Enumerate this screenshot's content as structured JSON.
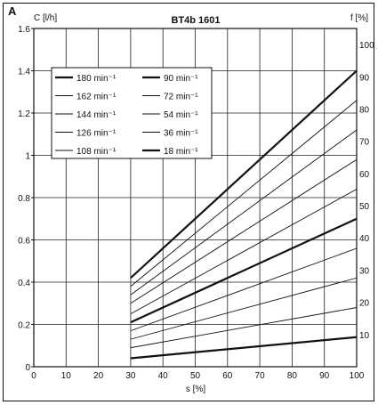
{
  "chart_data": {
    "type": "line",
    "panel_label": "A",
    "title": "BT4b 1601",
    "xlabel": "s [%]",
    "ylabel": "C [l/h]",
    "y2label": "f [%]",
    "xlim": [
      0,
      100
    ],
    "ylim": [
      0,
      1.6
    ],
    "y2lim": [
      0,
      105
    ],
    "xticks": [
      0,
      10,
      20,
      30,
      40,
      50,
      60,
      70,
      80,
      90,
      100
    ],
    "yticks": [
      0,
      0.2,
      0.4,
      0.6,
      0.8,
      1,
      1.2,
      1.4,
      1.6
    ],
    "y2ticks": [
      10,
      20,
      30,
      40,
      50,
      60,
      70,
      80,
      90,
      100
    ],
    "grid": true,
    "legend_position": "top-left",
    "x": [
      30,
      100
    ],
    "series": [
      {
        "name": "180 min⁻¹",
        "values": [
          0.42,
          1.4
        ],
        "bold": true
      },
      {
        "name": "162 min⁻¹",
        "values": [
          0.38,
          1.26
        ],
        "bold": false
      },
      {
        "name": "144 min⁻¹",
        "values": [
          0.34,
          1.12
        ],
        "bold": false
      },
      {
        "name": "126 min⁻¹",
        "values": [
          0.3,
          0.98
        ],
        "bold": false
      },
      {
        "name": "108 min⁻¹",
        "values": [
          0.25,
          0.84
        ],
        "bold": false
      },
      {
        "name": "90 min⁻¹",
        "values": [
          0.21,
          0.7
        ],
        "bold": true
      },
      {
        "name": "72 min⁻¹",
        "values": [
          0.17,
          0.56
        ],
        "bold": false
      },
      {
        "name": "54 min⁻¹",
        "values": [
          0.13,
          0.42
        ],
        "bold": false
      },
      {
        "name": "36 min⁻¹",
        "values": [
          0.09,
          0.28
        ],
        "bold": false
      },
      {
        "name": "18 min⁻¹",
        "values": [
          0.04,
          0.14
        ],
        "bold": true
      }
    ]
  }
}
